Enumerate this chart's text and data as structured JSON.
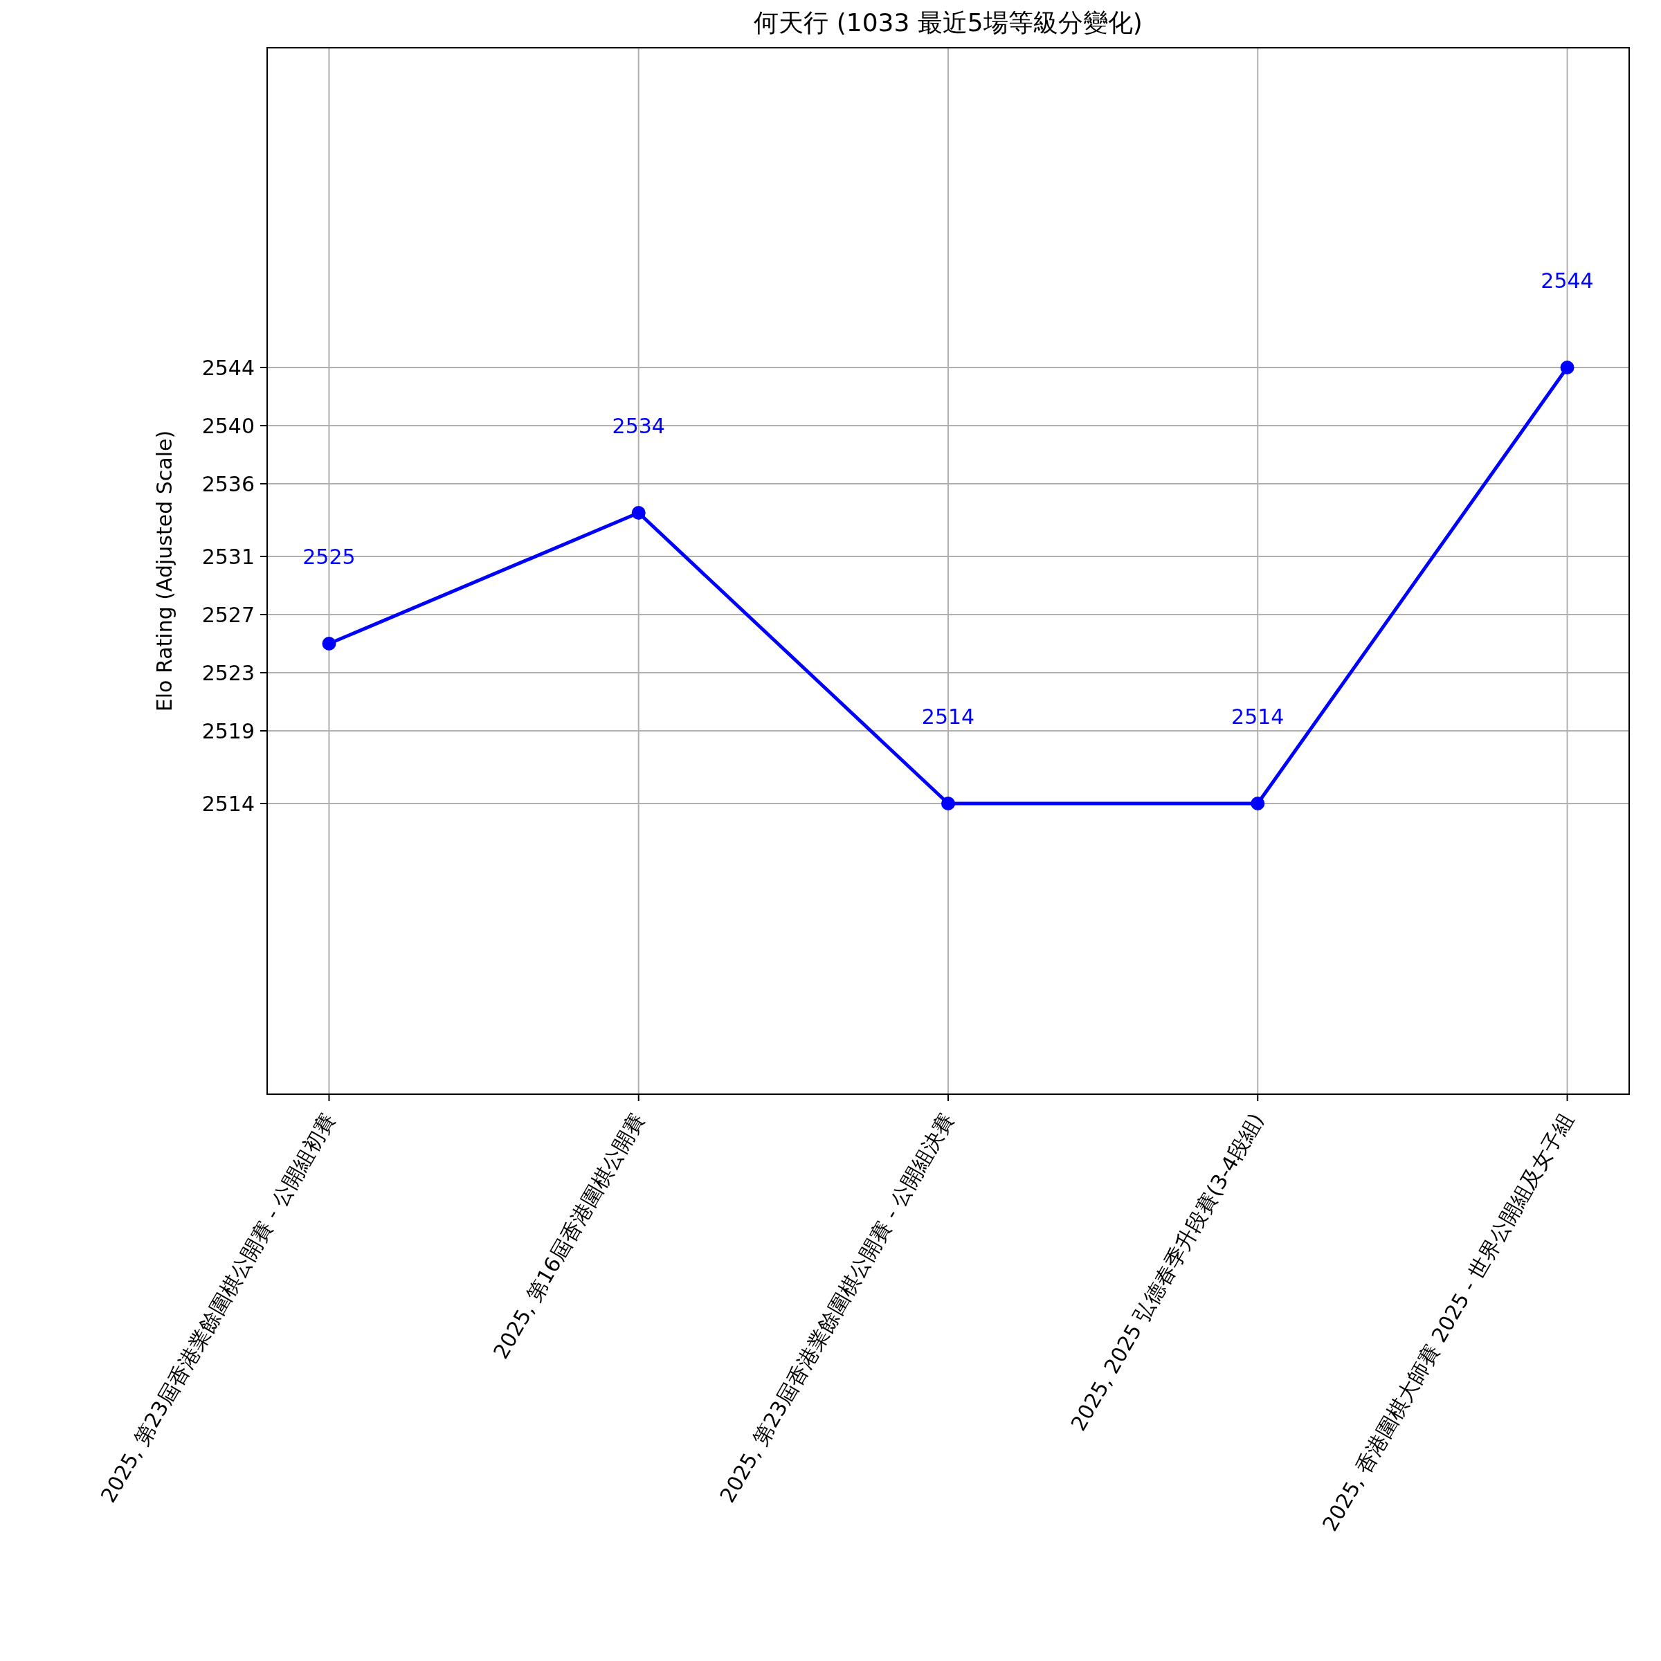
{
  "chart_data": {
    "type": "line",
    "title": "何天行 (1033 最近5場等級分變化)",
    "ylabel": "Elo Rating (Adjusted Scale)",
    "categories": [
      "2025, 第23屆香港業餘圍棋公開賽 - 公開組初賽",
      "2025, 第16屆香港圍棋公開賽",
      "2025, 第23屆香港業餘圍棋公開賽 - 公開組決賽",
      "2025, 2025 弘德春季升段賽(3-4段組)",
      "2025, 香港圍棋大師賽 2025 - 世界公開組及女子組"
    ],
    "series": [
      {
        "color": "#0000ff",
        "values": [
          2525,
          2534,
          2514,
          2514,
          2544
        ]
      }
    ],
    "annotations": [
      "2525",
      "2534",
      "2514",
      "2514",
      "2544"
    ],
    "marker": "circle",
    "line_style": "solid",
    "grid": true,
    "ylim": [
      2494,
      2566
    ],
    "yticks": [
      2514,
      2519,
      2523,
      2527,
      2531,
      2536,
      2540,
      2544
    ]
  }
}
